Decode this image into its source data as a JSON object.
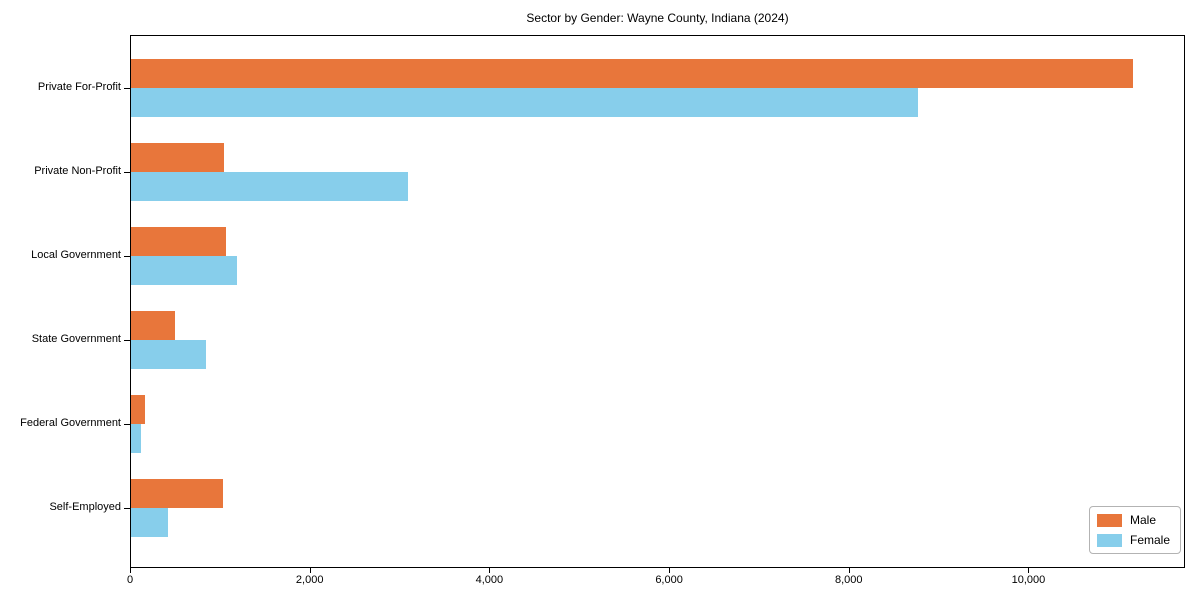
{
  "chart_data": {
    "type": "bar",
    "orientation": "horizontal",
    "title": "Sector by Gender: Wayne County, Indiana (2024)",
    "categories": [
      "Private For-Profit",
      "Private Non-Profit",
      "Local Government",
      "State Government",
      "Federal Government",
      "Self-Employed"
    ],
    "series": [
      {
        "name": "Male",
        "color": "#e8763b",
        "values": [
          11150,
          1040,
          1055,
          490,
          155,
          1020
        ]
      },
      {
        "name": "Female",
        "color": "#87ceeb",
        "values": [
          8760,
          3080,
          1180,
          840,
          110,
          410
        ]
      },
      {
        "note": ""
      }
    ],
    "xlabel": "",
    "ylabel": "",
    "xlim": [
      0,
      11720
    ],
    "x_ticks": [
      {
        "value": 0,
        "label": "0"
      },
      {
        "value": 2000,
        "label": "2,000"
      },
      {
        "value": 4000,
        "label": "4,000"
      },
      {
        "value": 6000,
        "label": "6,000"
      },
      {
        "value": 8000,
        "label": "8,000"
      },
      {
        "value": 10000,
        "label": "10,000"
      }
    ],
    "grid": false,
    "legend": {
      "position": "lower-right",
      "entries": [
        "Male",
        "Female"
      ]
    }
  }
}
